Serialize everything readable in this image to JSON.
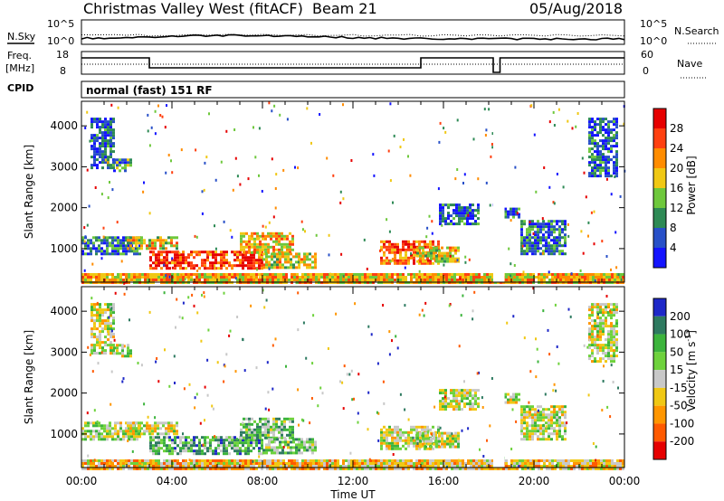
{
  "header": {
    "title": "Christmas Valley West (fitACF)",
    "beam": "Beam 21",
    "date": "05/Aug/2018"
  },
  "top_panels": {
    "nsky_label": "N.Sky",
    "nsky_ticks": [
      "10^5",
      "10^0"
    ],
    "nsearch_label": "N.Search",
    "nsearch_ticks": [
      "10^5",
      "10^0"
    ],
    "freq_label_1": "Freq.",
    "freq_label_2": "[MHz]",
    "freq_ticks": [
      "18",
      "8"
    ],
    "nave_label": "Nave",
    "nave_ticks": [
      "60",
      "0"
    ],
    "cpid_label": "CPID",
    "cpid_value": "normal (fast) 151 RF"
  },
  "chart_data": [
    {
      "type": "heatmap",
      "name": "power",
      "xlabel": "Time UT",
      "ylabel": "Slant Range [km]",
      "x_ticks": [
        "00:00",
        "04:00",
        "08:00",
        "12:00",
        "16:00",
        "20:00",
        "00:00"
      ],
      "xlim_hours": [
        0,
        24
      ],
      "ylim_km": [
        180,
        4600
      ],
      "y_ticks": [
        "1000",
        "2000",
        "3000",
        "4000"
      ],
      "colorbar_label": "Power [dB]",
      "colorbar_ticks": [
        "4",
        "8",
        "12",
        "16",
        "20",
        "24",
        "28"
      ],
      "colors": [
        "#1414ff",
        "#2850c8",
        "#2e8a55",
        "#6ec83c",
        "#f0c814",
        "#ff8c00",
        "#ff4010",
        "#e60000"
      ],
      "regions": [
        {
          "start_h": 0.0,
          "end_h": 24.0,
          "r_min": 180,
          "r_max": 400,
          "level": 0.62
        },
        {
          "start_h": 0.0,
          "end_h": 2.6,
          "r_min": 900,
          "r_max": 1300,
          "level": 0.25
        },
        {
          "start_h": 0.4,
          "end_h": 1.4,
          "r_min": 3000,
          "r_max": 4200,
          "level": 0.2
        },
        {
          "start_h": 1.4,
          "end_h": 2.2,
          "r_min": 2900,
          "r_max": 3200,
          "level": 0.3
        },
        {
          "start_h": 2.0,
          "end_h": 4.2,
          "r_min": 1000,
          "r_max": 1300,
          "level": 0.55
        },
        {
          "start_h": 3.0,
          "end_h": 8.0,
          "r_min": 500,
          "r_max": 950,
          "level": 0.82
        },
        {
          "start_h": 7.0,
          "end_h": 9.3,
          "r_min": 900,
          "r_max": 1400,
          "level": 0.6
        },
        {
          "start_h": 8.0,
          "end_h": 10.4,
          "r_min": 550,
          "r_max": 900,
          "level": 0.55
        },
        {
          "start_h": 13.2,
          "end_h": 15.8,
          "r_min": 650,
          "r_max": 1200,
          "level": 0.75
        },
        {
          "start_h": 14.8,
          "end_h": 16.6,
          "r_min": 700,
          "r_max": 1050,
          "level": 0.55
        },
        {
          "start_h": 15.8,
          "end_h": 17.5,
          "r_min": 1600,
          "r_max": 2100,
          "level": 0.2
        },
        {
          "start_h": 18.2,
          "end_h": 19.4,
          "r_min": 1800,
          "r_max": 2000,
          "level": 0.2
        },
        {
          "start_h": 19.4,
          "end_h": 21.4,
          "r_min": 900,
          "r_max": 1700,
          "level": 0.25
        },
        {
          "start_h": 22.4,
          "end_h": 23.6,
          "r_min": 2800,
          "r_max": 4200,
          "level": 0.2
        }
      ]
    },
    {
      "type": "heatmap",
      "name": "velocity",
      "xlabel": "Time UT",
      "ylabel": "Slant Range [km]",
      "x_ticks": [
        "00:00",
        "04:00",
        "08:00",
        "12:00",
        "16:00",
        "20:00",
        "00:00"
      ],
      "xlim_hours": [
        0,
        24
      ],
      "ylim_km": [
        180,
        4600
      ],
      "y_ticks": [
        "1000",
        "2000",
        "3000",
        "4000"
      ],
      "colorbar_label": "Velocity [m s^-1]",
      "colorbar_ticks": [
        "200",
        "100",
        "50",
        "15",
        "-15",
        "-50",
        "-100",
        "-200"
      ],
      "colors": [
        "#1e28c8",
        "#2e7a60",
        "#3cb43c",
        "#6ed23c",
        "#c8c8c8",
        "#f0c814",
        "#ff9600",
        "#ff5a00",
        "#e60000"
      ],
      "regions": [
        {
          "start_h": 0.0,
          "end_h": 24.0,
          "r_min": 180,
          "r_max": 380,
          "level": 0.62
        },
        {
          "start_h": 0.0,
          "end_h": 2.6,
          "r_min": 900,
          "r_max": 1300,
          "level": 0.45
        },
        {
          "start_h": 0.4,
          "end_h": 1.4,
          "r_min": 3000,
          "r_max": 4200,
          "level": 0.5
        },
        {
          "start_h": 1.4,
          "end_h": 2.2,
          "r_min": 2900,
          "r_max": 3200,
          "level": 0.5
        },
        {
          "start_h": 2.0,
          "end_h": 4.2,
          "r_min": 1000,
          "r_max": 1300,
          "level": 0.5
        },
        {
          "start_h": 3.0,
          "end_h": 8.0,
          "r_min": 500,
          "r_max": 950,
          "level": 0.3
        },
        {
          "start_h": 7.0,
          "end_h": 9.3,
          "r_min": 900,
          "r_max": 1400,
          "level": 0.35
        },
        {
          "start_h": 8.0,
          "end_h": 10.4,
          "r_min": 550,
          "r_max": 900,
          "level": 0.35
        },
        {
          "start_h": 13.2,
          "end_h": 15.8,
          "r_min": 650,
          "r_max": 1200,
          "level": 0.5
        },
        {
          "start_h": 14.8,
          "end_h": 16.6,
          "r_min": 700,
          "r_max": 1050,
          "level": 0.5
        },
        {
          "start_h": 15.8,
          "end_h": 17.5,
          "r_min": 1600,
          "r_max": 2100,
          "level": 0.5
        },
        {
          "start_h": 18.2,
          "end_h": 19.4,
          "r_min": 1800,
          "r_max": 2000,
          "level": 0.5
        },
        {
          "start_h": 19.4,
          "end_h": 21.4,
          "r_min": 900,
          "r_max": 1700,
          "level": 0.5
        },
        {
          "start_h": 22.4,
          "end_h": 23.6,
          "r_min": 2800,
          "r_max": 4200,
          "level": 0.5
        }
      ]
    }
  ]
}
